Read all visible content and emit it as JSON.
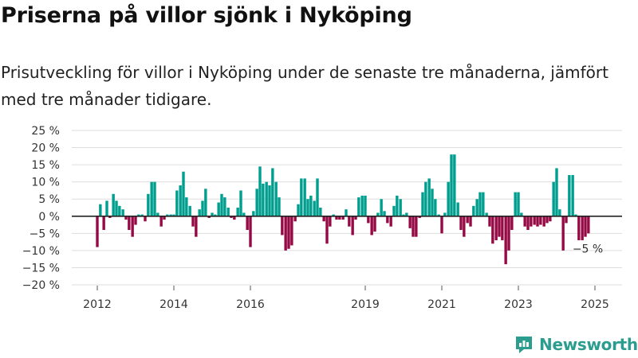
{
  "header": {
    "title": "Priserna på villor sjönk i Nyköping",
    "subtitle": "Prisutveckling för villor i Nyköping under de senaste tre månaderna, jämfört med tre månader tidigare."
  },
  "brand": {
    "name": "Newsworthy"
  },
  "colors": {
    "positive": "#009e8e",
    "negative": "#950a45",
    "zero_line": "#222222",
    "grid": "#dddddd",
    "brand": "#2a9d8f"
  },
  "chart_data": {
    "type": "bar",
    "ylim": [
      -20,
      25
    ],
    "y_ticks": [
      25,
      20,
      15,
      10,
      5,
      0,
      -5,
      -10,
      -15,
      -20
    ],
    "y_tick_labels": [
      "25 %",
      "20 %",
      "15 %",
      "10 %",
      "5 %",
      "0 %",
      "−5 %",
      "−10 %",
      "−15 %",
      "−20 %"
    ],
    "x_ticks": [
      2012,
      2014,
      2016,
      2019,
      2021,
      2023,
      2025
    ],
    "x_tick_labels": [
      "2012",
      "2014",
      "2016",
      "2019",
      "2021",
      "2023",
      "2025"
    ],
    "grid": true,
    "annotation": {
      "label": "−5 %",
      "x": 2024.83,
      "y": -5
    },
    "points": [
      [
        2012.0,
        -9
      ],
      [
        2012.08,
        3.5
      ],
      [
        2012.17,
        -4
      ],
      [
        2012.25,
        4.5
      ],
      [
        2012.33,
        -0.5
      ],
      [
        2012.42,
        6.5
      ],
      [
        2012.5,
        4.5
      ],
      [
        2012.58,
        3
      ],
      [
        2012.67,
        2
      ],
      [
        2012.75,
        -1
      ],
      [
        2012.83,
        -4
      ],
      [
        2012.92,
        -6
      ],
      [
        2013.0,
        -2.5
      ],
      [
        2013.08,
        0.5
      ],
      [
        2013.17,
        0.5
      ],
      [
        2013.25,
        -1.5
      ],
      [
        2013.33,
        6.5
      ],
      [
        2013.42,
        10
      ],
      [
        2013.5,
        10
      ],
      [
        2013.58,
        1
      ],
      [
        2013.67,
        -3
      ],
      [
        2013.75,
        -1
      ],
      [
        2013.83,
        0.5
      ],
      [
        2013.92,
        0.5
      ],
      [
        2014.0,
        0.5
      ],
      [
        2014.08,
        7.5
      ],
      [
        2014.17,
        9
      ],
      [
        2014.25,
        13
      ],
      [
        2014.33,
        5.5
      ],
      [
        2014.42,
        3
      ],
      [
        2014.5,
        -3
      ],
      [
        2014.58,
        -6
      ],
      [
        2014.67,
        2
      ],
      [
        2014.75,
        4.5
      ],
      [
        2014.83,
        8
      ],
      [
        2014.92,
        -0.5
      ],
      [
        2015.0,
        1
      ],
      [
        2015.08,
        0.5
      ],
      [
        2015.17,
        4
      ],
      [
        2015.25,
        6.5
      ],
      [
        2015.33,
        5.5
      ],
      [
        2015.42,
        2.5
      ],
      [
        2015.5,
        -0.5
      ],
      [
        2015.58,
        -1
      ],
      [
        2015.67,
        2.5
      ],
      [
        2015.75,
        7.5
      ],
      [
        2015.83,
        1
      ],
      [
        2015.92,
        -4
      ],
      [
        2016.0,
        -9
      ],
      [
        2016.08,
        1.5
      ],
      [
        2016.17,
        8
      ],
      [
        2016.25,
        14.5
      ],
      [
        2016.33,
        9.5
      ],
      [
        2016.42,
        10
      ],
      [
        2016.5,
        9
      ],
      [
        2016.58,
        14
      ],
      [
        2016.67,
        10
      ],
      [
        2016.75,
        5.5
      ],
      [
        2016.83,
        -5.5
      ],
      [
        2016.92,
        -10
      ],
      [
        2017.0,
        -9.5
      ],
      [
        2017.08,
        -8.5
      ],
      [
        2017.17,
        -1.5
      ],
      [
        2017.25,
        3.5
      ],
      [
        2017.33,
        11
      ],
      [
        2017.42,
        11
      ],
      [
        2017.5,
        5
      ],
      [
        2017.58,
        6
      ],
      [
        2017.67,
        4.5
      ],
      [
        2017.75,
        11
      ],
      [
        2017.83,
        2.5
      ],
      [
        2017.92,
        -1.5
      ],
      [
        2018.0,
        -8
      ],
      [
        2018.08,
        -3
      ],
      [
        2018.17,
        0.5
      ],
      [
        2018.25,
        -1
      ],
      [
        2018.33,
        -1
      ],
      [
        2018.42,
        -1
      ],
      [
        2018.5,
        2
      ],
      [
        2018.58,
        -3
      ],
      [
        2018.67,
        -5.5
      ],
      [
        2018.75,
        -1
      ],
      [
        2018.83,
        5.5
      ],
      [
        2018.92,
        6
      ],
      [
        2019.0,
        6
      ],
      [
        2019.08,
        -2
      ],
      [
        2019.17,
        -5.5
      ],
      [
        2019.25,
        -4.5
      ],
      [
        2019.33,
        1
      ],
      [
        2019.42,
        5
      ],
      [
        2019.5,
        1.5
      ],
      [
        2019.58,
        -2
      ],
      [
        2019.67,
        -3
      ],
      [
        2019.75,
        3
      ],
      [
        2019.83,
        6
      ],
      [
        2019.92,
        5
      ],
      [
        2020.0,
        0.5
      ],
      [
        2020.08,
        1
      ],
      [
        2020.17,
        -3.5
      ],
      [
        2020.25,
        -6
      ],
      [
        2020.33,
        -6
      ],
      [
        2020.42,
        -0.5
      ],
      [
        2020.5,
        7
      ],
      [
        2020.58,
        10
      ],
      [
        2020.67,
        11
      ],
      [
        2020.75,
        8
      ],
      [
        2020.83,
        5
      ],
      [
        2020.92,
        0.5
      ],
      [
        2021.0,
        -5
      ],
      [
        2021.08,
        1
      ],
      [
        2021.17,
        10
      ],
      [
        2021.25,
        18
      ],
      [
        2021.33,
        18
      ],
      [
        2021.42,
        4
      ],
      [
        2021.5,
        -4
      ],
      [
        2021.58,
        -6
      ],
      [
        2021.67,
        -2
      ],
      [
        2021.75,
        -3
      ],
      [
        2021.83,
        3
      ],
      [
        2021.92,
        5
      ],
      [
        2022.0,
        7
      ],
      [
        2022.08,
        7
      ],
      [
        2022.17,
        1
      ],
      [
        2022.25,
        -3
      ],
      [
        2022.33,
        -8
      ],
      [
        2022.42,
        -7
      ],
      [
        2022.5,
        -6
      ],
      [
        2022.58,
        -7
      ],
      [
        2022.67,
        -14
      ],
      [
        2022.75,
        -10
      ],
      [
        2022.83,
        -4
      ],
      [
        2022.92,
        7
      ],
      [
        2023.0,
        7
      ],
      [
        2023.08,
        1
      ],
      [
        2023.17,
        -3
      ],
      [
        2023.25,
        -4
      ],
      [
        2023.33,
        -3
      ],
      [
        2023.42,
        -2.5
      ],
      [
        2023.5,
        -3
      ],
      [
        2023.58,
        -2.5
      ],
      [
        2023.67,
        -3
      ],
      [
        2023.75,
        -2
      ],
      [
        2023.83,
        -1.5
      ],
      [
        2023.92,
        10
      ],
      [
        2024.0,
        14
      ],
      [
        2024.08,
        2
      ],
      [
        2024.17,
        -10
      ],
      [
        2024.25,
        -2
      ],
      [
        2024.33,
        12
      ],
      [
        2024.42,
        12
      ],
      [
        2024.5,
        0.5
      ],
      [
        2024.58,
        -7
      ],
      [
        2024.67,
        -7
      ],
      [
        2024.75,
        -6
      ],
      [
        2024.83,
        -5
      ]
    ]
  }
}
